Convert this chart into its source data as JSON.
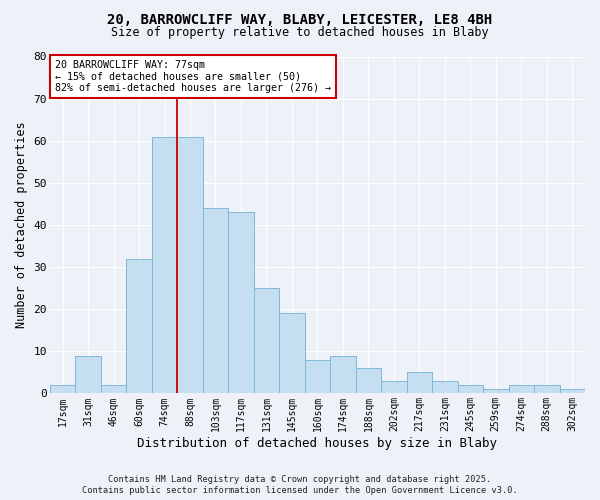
{
  "title1": "20, BARROWCLIFF WAY, BLABY, LEICESTER, LE8 4BH",
  "title2": "Size of property relative to detached houses in Blaby",
  "xlabel": "Distribution of detached houses by size in Blaby",
  "ylabel": "Number of detached properties",
  "categories": [
    "17sqm",
    "31sqm",
    "46sqm",
    "60sqm",
    "74sqm",
    "88sqm",
    "103sqm",
    "117sqm",
    "131sqm",
    "145sqm",
    "160sqm",
    "174sqm",
    "188sqm",
    "202sqm",
    "217sqm",
    "231sqm",
    "245sqm",
    "259sqm",
    "274sqm",
    "288sqm",
    "302sqm"
  ],
  "values": [
    2,
    9,
    2,
    32,
    61,
    61,
    44,
    43,
    25,
    19,
    8,
    9,
    6,
    3,
    5,
    3,
    2,
    1,
    2,
    2,
    1
  ],
  "bar_color": "#c5dff0",
  "bar_edge_color": "#7fb8d8",
  "vline_color": "#cc0000",
  "vline_index": 4,
  "annotation_title": "20 BARROWCLIFF WAY: 77sqm",
  "annotation_line1": "← 15% of detached houses are smaller (50)",
  "annotation_line2": "82% of semi-detached houses are larger (276) →",
  "annotation_box_facecolor": "white",
  "annotation_box_edgecolor": "#cc0000",
  "ylim": [
    0,
    80
  ],
  "yticks": [
    0,
    10,
    20,
    30,
    40,
    50,
    60,
    70,
    80
  ],
  "footnote1": "Contains HM Land Registry data © Crown copyright and database right 2025.",
  "footnote2": "Contains public sector information licensed under the Open Government Licence v3.0.",
  "bg_color": "#eef2f8",
  "grid_color": "#ffffff"
}
